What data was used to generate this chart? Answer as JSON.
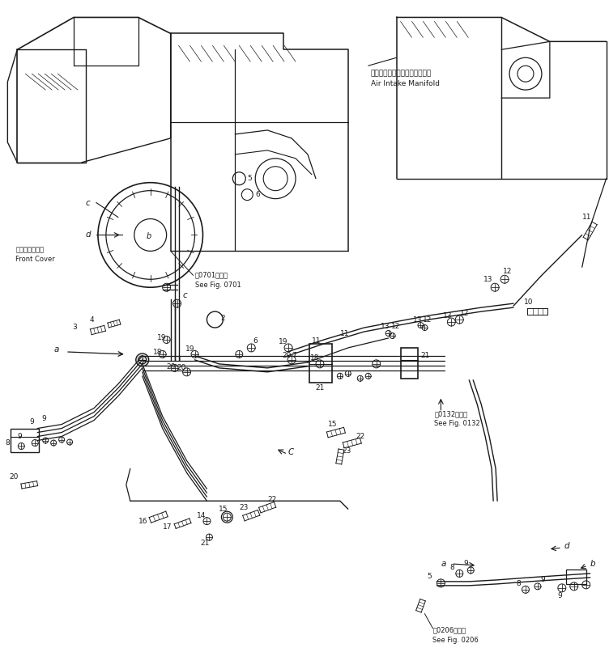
{
  "bg_color": "#ffffff",
  "line_color": "#1a1a1a",
  "fig_width": 7.52,
  "fig_height": 8.27,
  "dpi": 100,
  "labels": {
    "air_intake_jp": "エアーインテークマニホールド",
    "air_intake_en": "Air Intake Manifold",
    "front_cover_jp": "フロントカバー",
    "front_cover_en": "Front Cover",
    "see_0701_jp": "第0701図参照",
    "see_0701_en": "See Fig. 0701",
    "see_0132_jp": "第0132図参照",
    "see_0132_en": "See Fig. 0132",
    "see_0206_jp": "第0206図参照",
    "see_0206_en": "See Fig. 0206"
  }
}
